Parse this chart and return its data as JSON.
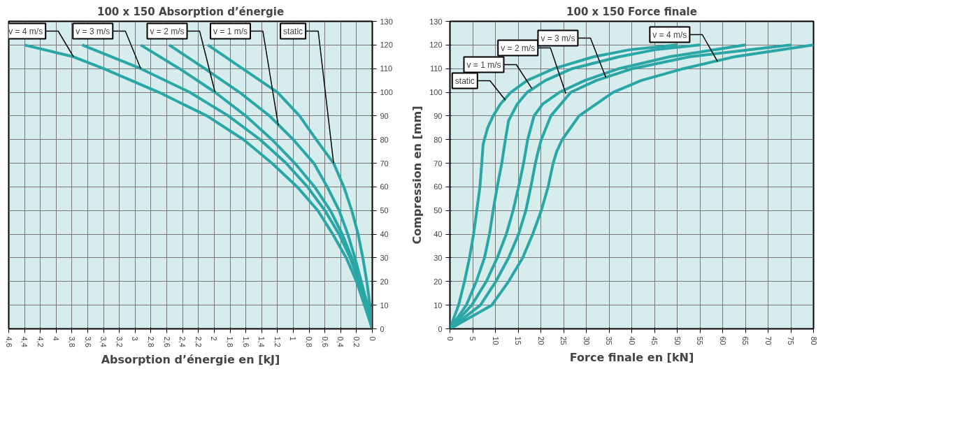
{
  "chart_data": [
    {
      "type": "line",
      "title": "100 x 150 Absorption d’énergie",
      "xlabel": "Absorption d’énergie en [kJ]",
      "xlim": [
        4.6,
        0
      ],
      "ylim": [
        0,
        130
      ],
      "xticks": [
        {
          "value": 4.6,
          "label": "4,6"
        },
        {
          "value": 4.4,
          "label": "4,4"
        },
        {
          "value": 4.2,
          "label": "4,2"
        },
        4,
        {
          "value": 3.8,
          "label": "3,8"
        },
        {
          "value": 3.6,
          "label": "3,6"
        },
        {
          "value": 3.4,
          "label": "3,4"
        },
        {
          "value": 3.2,
          "label": "3,2"
        },
        3,
        {
          "value": 2.8,
          "label": "2,8"
        },
        {
          "value": 2.6,
          "label": "2,6"
        },
        {
          "value": 2.4,
          "label": "2,4"
        },
        {
          "value": 2.2,
          "label": "2,2"
        },
        2,
        {
          "value": 1.8,
          "label": "1,8"
        },
        {
          "value": 1.6,
          "label": "1,6"
        },
        {
          "value": 1.4,
          "label": "1,4"
        },
        {
          "value": 1.2,
          "label": "1,2"
        },
        1,
        {
          "value": 0.8,
          "label": "0,8"
        },
        {
          "value": 0.6,
          "label": "0,6"
        },
        {
          "value": 0.4,
          "label": "0,4"
        },
        {
          "value": 0.2,
          "label": "0,2"
        },
        0
      ],
      "yticks": [
        0,
        10,
        20,
        30,
        40,
        50,
        60,
        70,
        80,
        90,
        100,
        110,
        120,
        130
      ],
      "grid": true,
      "marker": "none",
      "line_style": "solid",
      "series": [
        {
          "color": "#2aa6a6",
          "values": [
            0,
            10,
            20,
            30,
            40,
            50,
            60,
            70,
            80,
            90,
            100,
            120
          ],
          "x": [
            0,
            0.03,
            0.07,
            0.12,
            0.18,
            0.26,
            0.36,
            0.49,
            0.71,
            0.92,
            1.2,
            2.08
          ]
        },
        {
          "color": "#2aa6a6",
          "values": [
            0,
            10,
            20,
            30,
            40,
            50,
            60,
            70,
            80,
            90,
            100,
            110,
            120
          ],
          "x": [
            0,
            0.06,
            0.14,
            0.22,
            0.31,
            0.42,
            0.57,
            0.74,
            1.0,
            1.3,
            1.68,
            2.12,
            2.57
          ]
        },
        {
          "color": "#2aa6a6",
          "values": [
            0,
            10,
            20,
            30,
            40,
            50,
            60,
            70,
            80,
            90,
            100,
            110,
            120
          ],
          "x": [
            0,
            0.08,
            0.15,
            0.26,
            0.38,
            0.53,
            0.73,
            0.98,
            1.27,
            1.6,
            1.99,
            2.44,
            2.93
          ]
        },
        {
          "color": "#2aa6a6",
          "values": [
            0,
            10,
            20,
            30,
            40,
            50,
            60,
            70,
            80,
            90,
            100,
            110,
            120
          ],
          "x": [
            0,
            0.09,
            0.17,
            0.28,
            0.42,
            0.6,
            0.82,
            1.09,
            1.42,
            1.82,
            2.31,
            2.93,
            3.67
          ]
        },
        {
          "color": "#2aa6a6",
          "values": [
            0,
            10,
            20,
            30,
            40,
            50,
            60,
            70,
            80,
            90,
            100,
            110,
            115,
            120
          ],
          "x": [
            0,
            0.1,
            0.2,
            0.33,
            0.5,
            0.69,
            0.95,
            1.27,
            1.63,
            2.09,
            2.7,
            3.4,
            3.78,
            4.4
          ]
        }
      ],
      "annotations": [
        {
          "text": "v = 4 m/s",
          "x": 3.78,
          "y": 115
        },
        {
          "text": "v = 3 m/s",
          "x": 2.93,
          "y": 110
        },
        {
          "text": "v = 2 m/s",
          "x": 1.99,
          "y": 100
        },
        {
          "text": "v = 1 m/s",
          "x": 1.19,
          "y": 86
        },
        {
          "text": "static",
          "x": 0.49,
          "y": 70
        }
      ]
    },
    {
      "type": "line",
      "title": "100 x 150 Force finale",
      "xlabel": "Force finale en [kN]",
      "ylabel": "Compression en [mm]",
      "xlim": [
        0,
        80
      ],
      "ylim": [
        0,
        130
      ],
      "xticks": [
        0,
        5,
        10,
        15,
        20,
        25,
        30,
        35,
        40,
        45,
        50,
        55,
        60,
        65,
        70,
        75,
        80
      ],
      "yticks": [
        0,
        10,
        20,
        30,
        40,
        50,
        60,
        70,
        80,
        90,
        100,
        110,
        120,
        130
      ],
      "grid": true,
      "marker": "none",
      "line_style": "solid",
      "series": [
        {
          "color": "#2aa6a6",
          "values": [
            0,
            10,
            20,
            30,
            40,
            50,
            60,
            70,
            78,
            85,
            90,
            95,
            100,
            105,
            110,
            115,
            118,
            120
          ],
          "x": [
            0,
            1.9,
            3.2,
            4.3,
            5.2,
            5.9,
            6.6,
            7.0,
            7.3,
            8.3,
            9.5,
            11.1,
            13.4,
            17.0,
            22.9,
            31.6,
            39.6,
            50
          ]
        },
        {
          "color": "#2aa6a6",
          "values": [
            0,
            10,
            20,
            30,
            40,
            50,
            60,
            70,
            80,
            88,
            95,
            100,
            105,
            110,
            115,
            118,
            120
          ],
          "x": [
            0,
            3.6,
            5.8,
            7.6,
            8.7,
            9.5,
            10.4,
            11.4,
            12.2,
            12.9,
            14.8,
            17.0,
            21.0,
            26.9,
            37.2,
            45.2,
            55
          ]
        },
        {
          "color": "#2aa6a6",
          "values": [
            0,
            10,
            20,
            30,
            40,
            50,
            60,
            70,
            80,
            90,
            95,
            100,
            105,
            110,
            115,
            120
          ],
          "x": [
            0,
            4.8,
            8.0,
            10.4,
            12.4,
            13.9,
            15.1,
            16.2,
            17.1,
            18.5,
            20.4,
            24.1,
            29.7,
            37.2,
            48.3,
            65
          ]
        },
        {
          "color": "#2aa6a6",
          "values": [
            0,
            10,
            20,
            30,
            40,
            50,
            60,
            70,
            75,
            80,
            90,
            100,
            105,
            110,
            115,
            120
          ],
          "x": [
            0,
            6.7,
            10.1,
            12.9,
            15.1,
            16.7,
            17.8,
            18.8,
            19.4,
            20.1,
            22.2,
            26.6,
            32.2,
            40.2,
            52.7,
            75
          ]
        },
        {
          "color": "#2aa6a6",
          "values": [
            0,
            10,
            20,
            30,
            40,
            50,
            60,
            70,
            75,
            80,
            90,
            100,
            105,
            110,
            115,
            120
          ],
          "x": [
            0,
            9.2,
            12.9,
            16.0,
            18.2,
            20.1,
            21.6,
            22.7,
            23.5,
            24.7,
            28.4,
            35.9,
            42.1,
            51.4,
            62.6,
            80
          ]
        }
      ],
      "annotations": [
        {
          "text": "static",
          "x": 12.2,
          "y": 96.7
        },
        {
          "text": "v = 1 m/s",
          "x": 18,
          "y": 101.7
        },
        {
          "text": "v = 2 m/s",
          "x": 25.5,
          "y": 99.4
        },
        {
          "text": "v = 3 m/s",
          "x": 34.3,
          "y": 106.3
        },
        {
          "text": "v = 4 m/s",
          "x": 58.9,
          "y": 113
        }
      ]
    }
  ]
}
